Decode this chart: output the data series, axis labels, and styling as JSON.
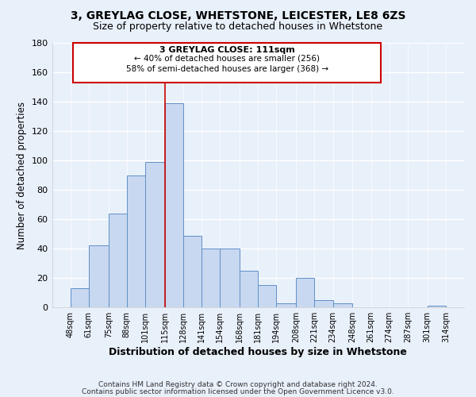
{
  "title1": "3, GREYLAG CLOSE, WHETSTONE, LEICESTER, LE8 6ZS",
  "title2": "Size of property relative to detached houses in Whetstone",
  "xlabel": "Distribution of detached houses by size in Whetstone",
  "ylabel": "Number of detached properties",
  "bar_left_edges": [
    48,
    61,
    75,
    88,
    101,
    115,
    128,
    141,
    154,
    168,
    181,
    194,
    208,
    221,
    234,
    248,
    261,
    274,
    287,
    301
  ],
  "bar_heights": [
    13,
    42,
    64,
    90,
    99,
    139,
    49,
    40,
    40,
    25,
    15,
    3,
    20,
    5,
    3,
    0,
    0,
    0,
    0,
    1
  ],
  "bar_widths": [
    13,
    14,
    13,
    13,
    14,
    13,
    13,
    13,
    14,
    13,
    13,
    14,
    13,
    13,
    14,
    13,
    13,
    13,
    14,
    13
  ],
  "tick_labels": [
    "48sqm",
    "61sqm",
    "75sqm",
    "88sqm",
    "101sqm",
    "115sqm",
    "128sqm",
    "141sqm",
    "154sqm",
    "168sqm",
    "181sqm",
    "194sqm",
    "208sqm",
    "221sqm",
    "234sqm",
    "248sqm",
    "261sqm",
    "274sqm",
    "287sqm",
    "301sqm",
    "314sqm"
  ],
  "tick_positions": [
    48,
    61,
    75,
    88,
    101,
    115,
    128,
    141,
    154,
    168,
    181,
    194,
    208,
    221,
    234,
    248,
    261,
    274,
    287,
    301,
    314
  ],
  "bar_color": "#c8d8f0",
  "bar_edge_color": "#6090c8",
  "vline_x": 115,
  "vline_color": "#cc0000",
  "annotation_line1": "3 GREYLAG CLOSE: 111sqm",
  "annotation_line2": "← 40% of detached houses are smaller (256)",
  "annotation_line3": "58% of semi-detached houses are larger (368) →",
  "annotation_box_color": "#ffffff",
  "annotation_box_edge_color": "#cc0000",
  "ylim": [
    0,
    180
  ],
  "xlim": [
    35,
    327
  ],
  "yticks": [
    0,
    20,
    40,
    60,
    80,
    100,
    120,
    140,
    160,
    180
  ],
  "footer_line1": "Contains HM Land Registry data © Crown copyright and database right 2024.",
  "footer_line2": "Contains public sector information licensed under the Open Government Licence v3.0.",
  "background_color": "#e8f0fa",
  "grid_color": "#d0ddf0"
}
